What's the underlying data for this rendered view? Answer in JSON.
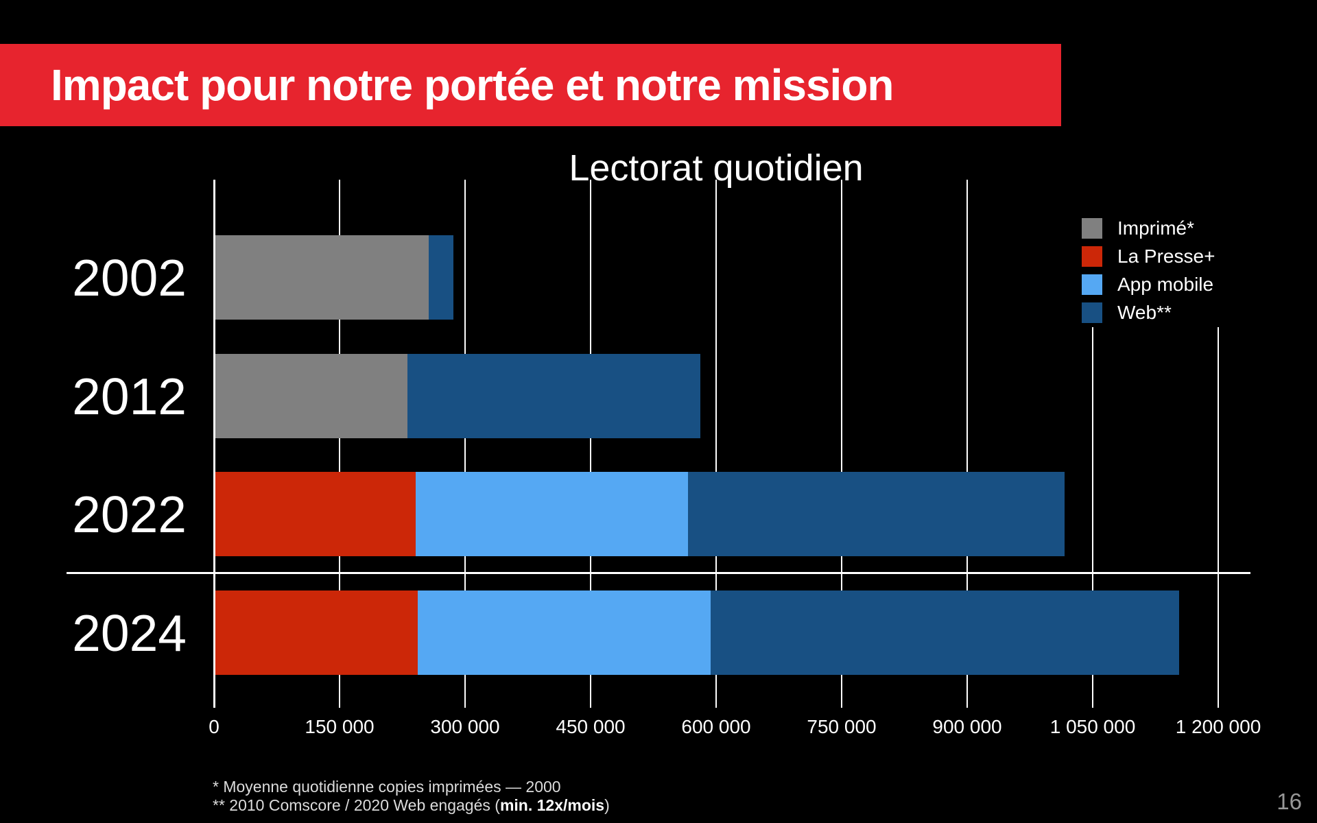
{
  "slide": {
    "title": "Impact pour notre portée et notre mission",
    "page_number": "16",
    "footnotes": {
      "line1": "* Moyenne quotidienne copies imprimées — 2000",
      "line2_prefix": "** 2010 Comscore / 2020 Web engagés (",
      "line2_bold": "min. 12x/mois",
      "line2_suffix": ")"
    }
  },
  "colors": {
    "background": "#000000",
    "banner_red": "#e7242e",
    "imprime_gray": "#808080",
    "lapresse_red": "#cc2708",
    "app_mobile_blue": "#55a8f3",
    "web_blue": "#185083",
    "grid_white": "#ffffff"
  },
  "chart_data": {
    "type": "bar",
    "orientation": "horizontal",
    "stacked": true,
    "title": "Lectorat quotidien",
    "categories": [
      "2002",
      "2012",
      "2022",
      "2024"
    ],
    "series": [
      {
        "name": "Imprimé*",
        "color": "#808080",
        "values": [
          255000,
          230000,
          0,
          0
        ]
      },
      {
        "name": "La Presse+",
        "color": "#cc2708",
        "values": [
          0,
          0,
          240000,
          242000
        ]
      },
      {
        "name": "App mobile",
        "color": "#55a8f3",
        "values": [
          0,
          0,
          325000,
          350000
        ]
      },
      {
        "name": "Web**",
        "color": "#185083",
        "values": [
          30000,
          350000,
          450000,
          560000
        ]
      }
    ],
    "totals": [
      285000,
      580000,
      1015000,
      1152000
    ],
    "xlim": [
      0,
      1200000
    ],
    "x_ticks": [
      {
        "value": 0,
        "label": "0"
      },
      {
        "value": 150000,
        "label": "150 000"
      },
      {
        "value": 300000,
        "label": "300 000"
      },
      {
        "value": 450000,
        "label": "450 000"
      },
      {
        "value": 600000,
        "label": "600 000"
      },
      {
        "value": 750000,
        "label": "750 000"
      },
      {
        "value": 900000,
        "label": "900 000"
      },
      {
        "value": 1050000,
        "label": "1 050 000"
      },
      {
        "value": 1200000,
        "label": "1 200 000"
      }
    ],
    "grid": true,
    "legend_position": "top-right"
  }
}
